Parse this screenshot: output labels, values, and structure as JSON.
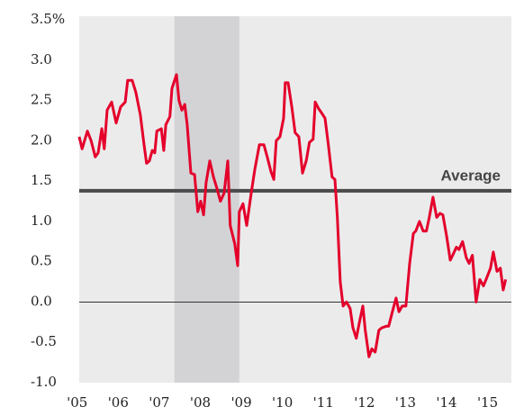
{
  "chart_data": {
    "type": "line",
    "color": "#e4002b",
    "x": [
      2005.6,
      2005.67,
      2005.8,
      2005.89,
      2005.99,
      2006.06,
      2006.15,
      2006.21,
      2006.28,
      2006.39,
      2006.5,
      2006.61,
      2006.72,
      2006.78,
      2006.89,
      2006.98,
      2007.09,
      2007.18,
      2007.24,
      2007.31,
      2007.38,
      2007.44,
      2007.49,
      2007.6,
      2007.66,
      2007.71,
      2007.81,
      2007.86,
      2007.97,
      2008.03,
      2008.1,
      2008.17,
      2008.23,
      2008.32,
      2008.41,
      2008.49,
      2008.56,
      2008.63,
      2008.69,
      2008.78,
      2008.87,
      2008.96,
      2009.04,
      2009.13,
      2009.22,
      2009.28,
      2009.39,
      2009.46,
      2009.5,
      2009.59,
      2009.68,
      2009.79,
      2009.88,
      2009.99,
      2010.1,
      2010.18,
      2010.27,
      2010.34,
      2010.4,
      2010.49,
      2010.58,
      2010.62,
      2010.69,
      2010.78,
      2010.86,
      2010.95,
      2011.04,
      2011.13,
      2011.21,
      2011.3,
      2011.35,
      2011.43,
      2011.5,
      2011.59,
      2011.67,
      2011.76,
      2011.83,
      2011.89,
      2011.96,
      2012.03,
      2012.11,
      2012.2,
      2012.27,
      2012.35,
      2012.44,
      2012.51,
      2012.57,
      2012.66,
      2012.73,
      2012.81,
      2012.9,
      2012.97,
      2013.08,
      2013.14,
      2013.23,
      2013.32,
      2013.39,
      2013.47,
      2013.56,
      2013.65,
      2013.74,
      2013.8,
      2013.89,
      2013.98,
      2014.06,
      2014.13,
      2014.22,
      2014.31,
      2014.39,
      2014.46,
      2014.55,
      2014.64,
      2014.7,
      2014.79,
      2014.85,
      2014.94,
      2015.03,
      2015.1,
      2015.18,
      2015.27,
      2015.36,
      2015.45,
      2015.53,
      2015.62,
      2015.69,
      2015.78,
      2015.86,
      2015.93,
      2015.99
    ],
    "values": [
      2.05,
      1.9,
      2.12,
      2.0,
      1.8,
      1.85,
      2.15,
      1.9,
      2.38,
      2.48,
      2.22,
      2.42,
      2.48,
      2.75,
      2.75,
      2.6,
      2.32,
      1.95,
      1.72,
      1.75,
      1.88,
      1.85,
      2.12,
      2.15,
      1.88,
      2.2,
      2.3,
      2.65,
      2.82,
      2.5,
      2.38,
      2.45,
      2.2,
      1.6,
      1.58,
      1.12,
      1.25,
      1.08,
      1.48,
      1.75,
      1.55,
      1.4,
      1.25,
      1.35,
      1.75,
      0.95,
      0.72,
      0.45,
      1.12,
      1.22,
      0.95,
      1.35,
      1.65,
      1.95,
      1.95,
      1.8,
      1.62,
      1.52,
      2.0,
      2.05,
      2.28,
      2.72,
      2.72,
      2.42,
      2.1,
      2.05,
      1.6,
      1.75,
      1.98,
      2.02,
      2.48,
      2.4,
      2.35,
      2.28,
      1.95,
      1.55,
      1.52,
      1.05,
      0.25,
      -0.05,
      0.0,
      -0.08,
      -0.32,
      -0.45,
      -0.22,
      -0.05,
      -0.35,
      -0.68,
      -0.58,
      -0.62,
      -0.35,
      -0.32,
      -0.3,
      -0.3,
      -0.12,
      0.05,
      -0.12,
      -0.05,
      -0.05,
      0.48,
      0.85,
      0.88,
      1.0,
      0.88,
      0.88,
      1.05,
      1.3,
      1.05,
      1.1,
      1.08,
      0.82,
      0.52,
      0.58,
      0.68,
      0.65,
      0.75,
      0.55,
      0.48,
      0.58,
      0.0,
      0.28,
      0.2,
      0.3,
      0.42,
      0.62,
      0.38,
      0.42,
      0.15,
      0.28
    ],
    "xlim": [
      2005.6,
      2016.13
    ],
    "xticks": [
      {
        "value": 2005.55,
        "label": "'05"
      },
      {
        "value": 2006.55,
        "label": "'06"
      },
      {
        "value": 2007.55,
        "label": "'07"
      },
      {
        "value": 2008.55,
        "label": "'08"
      },
      {
        "value": 2009.55,
        "label": "'09"
      },
      {
        "value": 2010.55,
        "label": "'10"
      },
      {
        "value": 2011.55,
        "label": "'11"
      },
      {
        "value": 2012.55,
        "label": "'12"
      },
      {
        "value": 2013.55,
        "label": "'13"
      },
      {
        "value": 2014.55,
        "label": "'14"
      },
      {
        "value": 2015.55,
        "label": "'15"
      }
    ],
    "ylim": [
      -1.0,
      3.5
    ],
    "yticks": [
      {
        "value": -1.0,
        "label": "-1.0"
      },
      {
        "value": -0.5,
        "label": "-0.5"
      },
      {
        "value": 0,
        "label": "0.0"
      },
      {
        "value": 0.5,
        "label": "0.5"
      },
      {
        "value": 1.0,
        "label": "1.0"
      },
      {
        "value": 1.5,
        "label": "1.5"
      },
      {
        "value": 2.0,
        "label": "2.0"
      },
      {
        "value": 2.5,
        "label": "2.5"
      },
      {
        "value": 3.0,
        "label": "3.0"
      },
      {
        "value": 3.5,
        "label": "3.5%"
      }
    ],
    "shaded_region": [
      2007.92,
      2009.5
    ],
    "average": {
      "label": "Average",
      "value": 1.38
    }
  }
}
